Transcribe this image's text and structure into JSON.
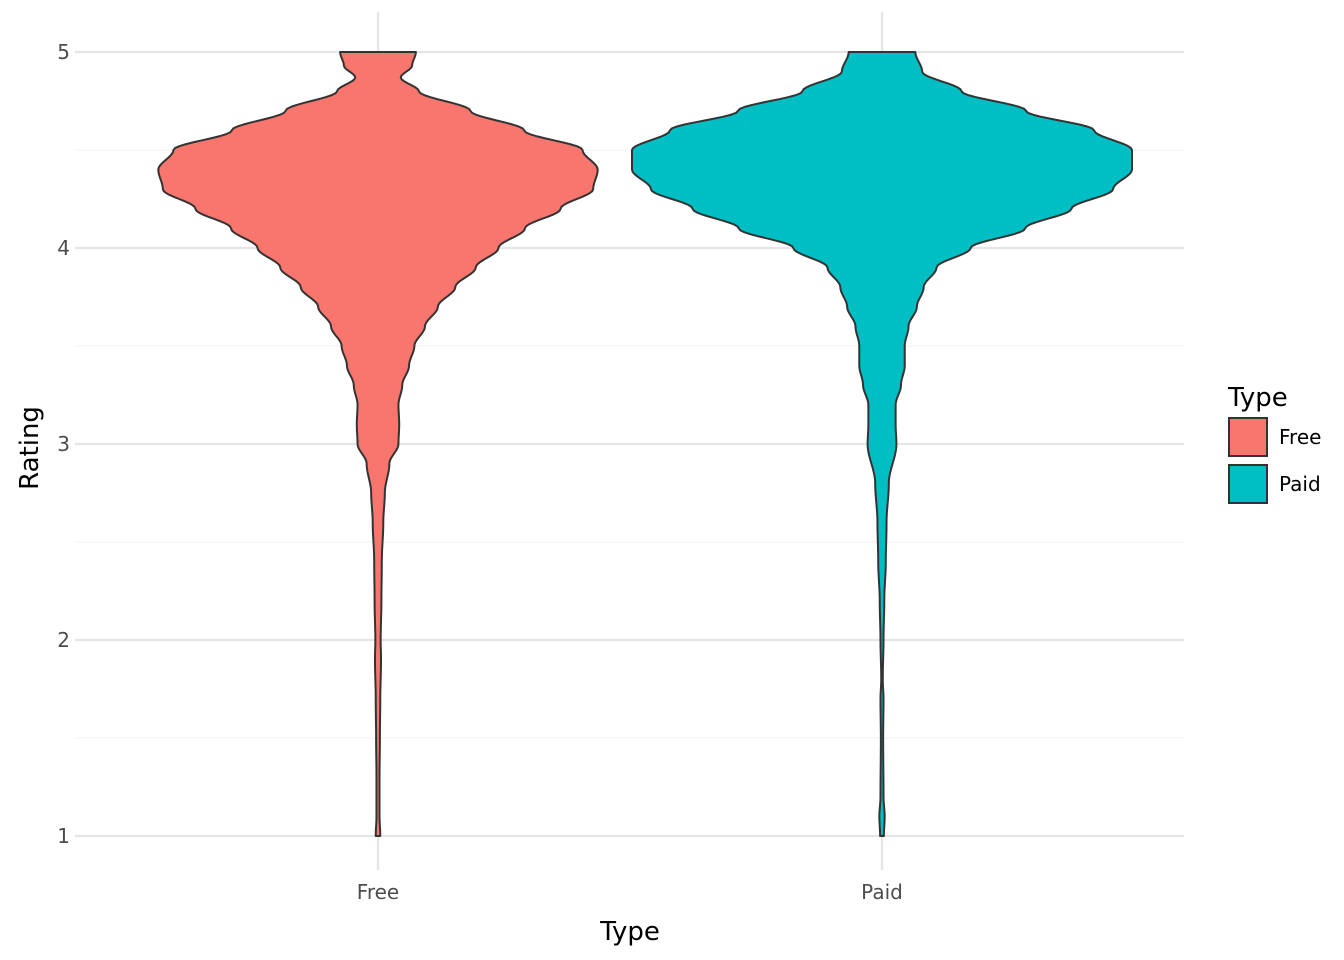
{
  "chart_data": {
    "type": "violin",
    "title": "",
    "xlabel": "Type",
    "ylabel": "Rating",
    "categories": [
      "Free",
      "Paid"
    ],
    "ylim": [
      0.92,
      5.2
    ],
    "yticks": [
      1,
      2,
      3,
      4,
      5
    ],
    "grid": true,
    "legend": {
      "title": "Type",
      "position": "right"
    },
    "series": [
      {
        "name": "Free",
        "color": "#F8766D",
        "density": [
          [
            1.0,
            0.006
          ],
          [
            1.1,
            0.004
          ],
          [
            1.3,
            0.004
          ],
          [
            1.5,
            0.005
          ],
          [
            1.7,
            0.006
          ],
          [
            1.9,
            0.008
          ],
          [
            2.0,
            0.007
          ],
          [
            2.2,
            0.009
          ],
          [
            2.4,
            0.01
          ],
          [
            2.6,
            0.014
          ],
          [
            2.75,
            0.018
          ],
          [
            2.9,
            0.03
          ],
          [
            3.0,
            0.054
          ],
          [
            3.1,
            0.056
          ],
          [
            3.2,
            0.054
          ],
          [
            3.3,
            0.064
          ],
          [
            3.4,
            0.082
          ],
          [
            3.5,
            0.096
          ],
          [
            3.6,
            0.124
          ],
          [
            3.7,
            0.158
          ],
          [
            3.8,
            0.204
          ],
          [
            3.9,
            0.258
          ],
          [
            4.0,
            0.318
          ],
          [
            4.1,
            0.388
          ],
          [
            4.2,
            0.482
          ],
          [
            4.3,
            0.568
          ],
          [
            4.4,
            0.58
          ],
          [
            4.5,
            0.54
          ],
          [
            4.6,
            0.386
          ],
          [
            4.7,
            0.244
          ],
          [
            4.8,
            0.108
          ],
          [
            4.87,
            0.06
          ],
          [
            4.93,
            0.09
          ],
          [
            5.0,
            0.1
          ]
        ]
      },
      {
        "name": "Paid",
        "color": "#00BFC4",
        "density": [
          [
            1.0,
            0.005
          ],
          [
            1.1,
            0.007
          ],
          [
            1.2,
            0.004
          ],
          [
            1.5,
            0.003
          ],
          [
            1.7,
            0.004
          ],
          [
            1.8,
            0.002
          ],
          [
            2.0,
            0.004
          ],
          [
            2.2,
            0.006
          ],
          [
            2.4,
            0.01
          ],
          [
            2.6,
            0.012
          ],
          [
            2.8,
            0.018
          ],
          [
            3.0,
            0.038
          ],
          [
            3.1,
            0.036
          ],
          [
            3.2,
            0.036
          ],
          [
            3.3,
            0.05
          ],
          [
            3.4,
            0.06
          ],
          [
            3.5,
            0.06
          ],
          [
            3.6,
            0.07
          ],
          [
            3.7,
            0.092
          ],
          [
            3.8,
            0.11
          ],
          [
            3.9,
            0.144
          ],
          [
            4.0,
            0.234
          ],
          [
            4.1,
            0.378
          ],
          [
            4.2,
            0.5
          ],
          [
            4.3,
            0.61
          ],
          [
            4.4,
            0.66
          ],
          [
            4.5,
            0.66
          ],
          [
            4.6,
            0.56
          ],
          [
            4.7,
            0.38
          ],
          [
            4.8,
            0.21
          ],
          [
            4.9,
            0.106
          ],
          [
            5.0,
            0.088
          ]
        ]
      }
    ]
  }
}
